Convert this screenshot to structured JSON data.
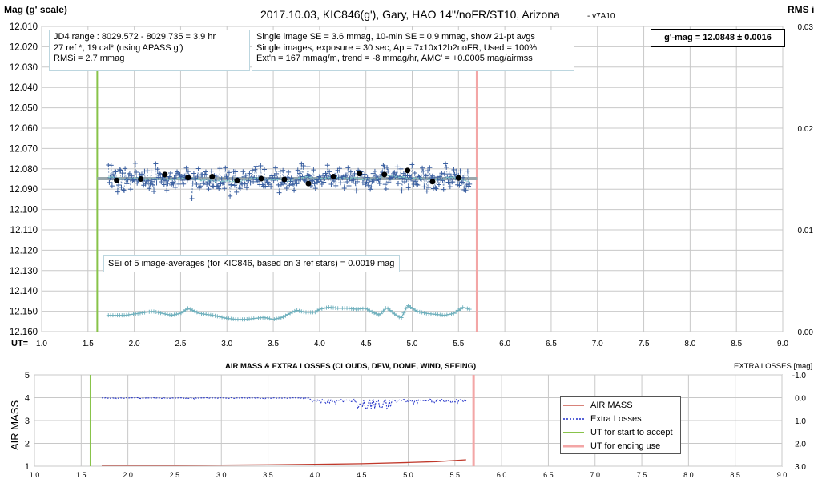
{
  "chart_data": [
    {
      "type": "scatter",
      "title": "2017.10.03,  KIC846(g'),  Gary,  HAO  14\"/noFR/ST10,  Arizona",
      "title_suffix": "- v7A10",
      "ylabel": "Mag (g' scale)",
      "y2label": "RMS i",
      "xlabel_prefix": "UT=",
      "xlim": [
        1.0,
        9.0
      ],
      "ylim": [
        12.01,
        12.16
      ],
      "y_inverted": true,
      "y2lim": [
        0.0,
        0.03
      ],
      "x_ticks": [
        "1.0",
        "1.5",
        "2.0",
        "2.5",
        "3.0",
        "3.5",
        "4.0",
        "4.5",
        "5.0",
        "5.5",
        "6.0",
        "6.5",
        "7.0",
        "7.5",
        "8.0",
        "8.5",
        "9.0"
      ],
      "y_ticks": [
        "12.010",
        "12.020",
        "12.030",
        "12.040",
        "12.050",
        "12.060",
        "12.070",
        "12.080",
        "12.090",
        "12.100",
        "12.110",
        "12.120",
        "12.130",
        "12.140",
        "12.150",
        "12.160"
      ],
      "y2_ticks": [
        "0.03",
        "0.02",
        "0.01",
        "0.00"
      ],
      "annotations": {
        "info_left": [
          "JD4 range : 8029.572 - 8029.735 =  3.9  hr",
          "27 ref *, 19 cal* (using APASS g')",
          "RMSi = 2.7 mmag"
        ],
        "info_mid": [
          "Single image SE = 3.6 mmag, 10-min SE = 0.9 mmag, show 21-pt avgs",
          "Single images, exposure = 30 sec, Ap = 7x10x12b2noFR, Used = 100%",
          "Ext'n = 167 mmag/m, trend = -8 mmag/hr, AMC' = +0.0005 mag/airmss"
        ],
        "result": "g'-mag = 12.0848 ± 0.0016",
        "sei_note": "SEi of 5 image-averages (for KIC846, based on 3 ref stars) = 0.0019 mag"
      },
      "series": [
        {
          "style": "single-image crosses",
          "x_range": [
            1.72,
            5.62
          ],
          "center": 12.0848,
          "scatter": 0.005
        },
        {
          "style": "21-pt average (dashed)",
          "x_range": [
            1.72,
            5.62
          ],
          "center": 12.0848
        },
        {
          "style": "black dots",
          "x": [
            1.81,
            2.07,
            2.33,
            2.58,
            2.84,
            3.11,
            3.37,
            3.62,
            3.88,
            4.15,
            4.43,
            4.7,
            4.95,
            5.22,
            5.5
          ],
          "y": [
            12.0857,
            12.085,
            12.0828,
            12.0843,
            12.0838,
            12.0857,
            12.0848,
            12.0852,
            12.0872,
            12.0838,
            12.0823,
            12.0828,
            12.0808,
            12.0863,
            12.0845
          ]
        },
        {
          "style": "mean line",
          "x_range": [
            1.6,
            5.7
          ],
          "y": 12.0848
        },
        {
          "style": "RMS i (right axis)",
          "x": [
            1.72,
            1.9,
            2.05,
            2.2,
            2.3,
            2.4,
            2.5,
            2.58,
            2.7,
            2.85,
            3.0,
            3.1,
            3.2,
            3.3,
            3.4,
            3.5,
            3.6,
            3.68,
            3.75,
            3.85,
            3.95,
            4.0,
            4.1,
            4.2,
            4.3,
            4.4,
            4.5,
            4.55,
            4.65,
            4.72,
            4.8,
            4.88,
            4.95,
            5.05,
            5.15,
            5.25,
            5.35,
            5.45,
            5.55,
            5.62
          ],
          "y": [
            0.0016,
            0.0016,
            0.0018,
            0.002,
            0.0018,
            0.0016,
            0.0018,
            0.0023,
            0.0018,
            0.0016,
            0.0013,
            0.0012,
            0.0012,
            0.0013,
            0.0014,
            0.0012,
            0.0014,
            0.0018,
            0.0021,
            0.0019,
            0.0019,
            0.0022,
            0.0024,
            0.0023,
            0.0023,
            0.0022,
            0.0023,
            0.002,
            0.0016,
            0.0024,
            0.0018,
            0.0013,
            0.0026,
            0.002,
            0.0018,
            0.0017,
            0.0016,
            0.0018,
            0.0024,
            0.0022
          ]
        }
      ],
      "markers": {
        "start_ut": 1.6,
        "end_ut": 5.7
      }
    },
    {
      "type": "line",
      "title": "AIR MASS & EXTRA LOSSES (CLOUDS, DEW, DOME, WIND, SEEING)",
      "ylabel": "AIR MASS",
      "y2label": "EXTRA LOSSES [mag]",
      "xlim": [
        1.0,
        9.0
      ],
      "ylim": [
        1,
        5
      ],
      "y2lim": [
        -1.0,
        3.0
      ],
      "y2_inverted": true,
      "x_ticks": [
        "1.0",
        "1.5",
        "2.0",
        "2.5",
        "3.0",
        "3.5",
        "4.0",
        "4.5",
        "5.0",
        "5.5",
        "6.0",
        "6.5",
        "7.0",
        "7.5",
        "8.0",
        "8.5",
        "9.0"
      ],
      "y_ticks": [
        "5",
        "4",
        "3",
        "2",
        "1"
      ],
      "y2_ticks": [
        "-1.0",
        "0.0",
        "1.0",
        "2.0",
        "3.0"
      ],
      "series": [
        {
          "name": "AIR MASS",
          "color": "#c0392b",
          "x": [
            1.72,
            2.0,
            2.5,
            3.0,
            3.5,
            4.0,
            4.5,
            5.0,
            5.3,
            5.5,
            5.62
          ],
          "y": [
            1.04,
            1.04,
            1.04,
            1.05,
            1.06,
            1.08,
            1.11,
            1.16,
            1.2,
            1.25,
            1.28
          ]
        },
        {
          "name": "Extra Losses",
          "color": "#1f2fc8",
          "x_range": [
            1.72,
            5.62
          ]
        },
        {
          "name": "UT for start to accept",
          "color": "#88c34a",
          "x": 1.6
        },
        {
          "name": "UT for ending use",
          "color": "#f3a6a6",
          "x": 5.7
        }
      ]
    }
  ]
}
